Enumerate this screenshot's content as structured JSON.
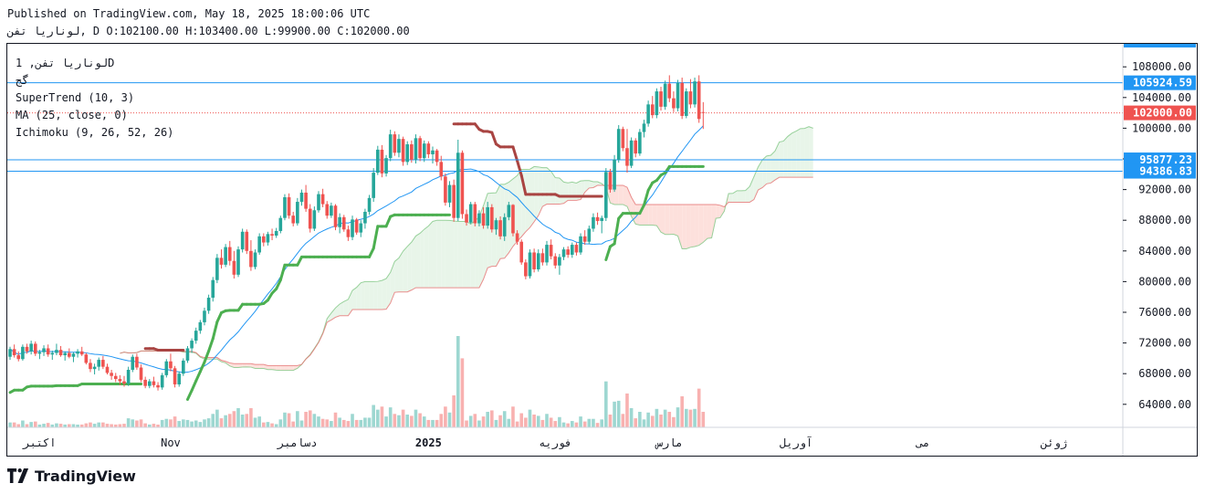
{
  "header": {
    "published": "Published on TradingView.com, May 18, 2025 18:00:06 UTC",
    "ohlc_line": "لوناریا تفن, D O:102100.00 H:103400.00 L:99900.00 C:102000.00"
  },
  "legend": {
    "symbol": "لوناریا تفن, 1D",
    "subtitle": "گج",
    "indicators": [
      "SuperTrend (10, 3)",
      "MA (25, close, 0)",
      "Ichimoku (9, 26, 52, 26)"
    ]
  },
  "brand": {
    "name": "TradingView",
    "logo_icon": "tradingview-logo-icon"
  },
  "colors": {
    "up": "#26a69a",
    "down": "#ef5350",
    "supertrend_up": "#4caf50",
    "supertrend_down": "#a94442",
    "ma": "#2196f3",
    "cloud_bull": "#e8f5e9",
    "cloud_bear": "#fde0dc",
    "price_label_bg": "#ef5350",
    "level_label_bg": "#2196f3"
  },
  "chart_data": {
    "type": "candlestick",
    "y_axis": {
      "ticks": [
        64000,
        68000,
        72000,
        76000,
        80000,
        84000,
        88000,
        92000,
        96000,
        100000,
        104000,
        108000
      ],
      "tick_labels": [
        "64000.00",
        "68000.00",
        "72000.00",
        "76000.00",
        "80000.00",
        "84000.00",
        "88000.00",
        "92000.00",
        "96000.00",
        "100000.00",
        "104000.00",
        "108000.00"
      ],
      "range": [
        61000,
        111000
      ]
    },
    "x_axis": {
      "labels": [
        "اکتبر",
        "Nov",
        "دسامبر",
        "2025",
        "فوریه",
        "مارس",
        "آوریل",
        "می",
        "ژوئن"
      ],
      "label_index": [
        7,
        38,
        68,
        99,
        129,
        156,
        186,
        216,
        247
      ]
    },
    "last_price": {
      "value": 102000,
      "label": "102000.00"
    },
    "horizontal_levels": [
      {
        "value": 105924.59,
        "label": "105924.59"
      },
      {
        "value": 95877.23,
        "label": "95877.23"
      },
      {
        "value": 94386.83,
        "label": "94386.83"
      }
    ],
    "ohlc": [
      [
        70200,
        71500,
        69800,
        71200
      ],
      [
        71200,
        71800,
        70100,
        70400
      ],
      [
        70400,
        70900,
        69600,
        69900
      ],
      [
        69900,
        71800,
        69700,
        71500
      ],
      [
        71500,
        71900,
        70600,
        70900
      ],
      [
        70900,
        72300,
        70500,
        71900
      ],
      [
        71900,
        72200,
        70300,
        70600
      ],
      [
        70600,
        71100,
        69900,
        70800
      ],
      [
        70800,
        71700,
        70300,
        71300
      ],
      [
        71300,
        71800,
        70200,
        70500
      ],
      [
        70500,
        71000,
        69800,
        70700
      ],
      [
        70700,
        71900,
        70400,
        71100
      ],
      [
        71100,
        71600,
        70200,
        70400
      ],
      [
        70400,
        70900,
        69700,
        70700
      ],
      [
        70700,
        71300,
        70000,
        70200
      ],
      [
        70200,
        70800,
        69500,
        70600
      ],
      [
        70600,
        71200,
        70100,
        70900
      ],
      [
        70900,
        71500,
        70300,
        70500
      ],
      [
        70500,
        70700,
        69200,
        69400
      ],
      [
        69400,
        69900,
        68200,
        68600
      ],
      [
        68600,
        69300,
        67900,
        68900
      ],
      [
        68900,
        70100,
        68400,
        69800
      ],
      [
        69800,
        70300,
        68600,
        68900
      ],
      [
        68900,
        69300,
        67900,
        68100
      ],
      [
        68100,
        68500,
        67200,
        67700
      ],
      [
        67700,
        68100,
        66900,
        67300
      ],
      [
        67300,
        67800,
        66500,
        67000
      ],
      [
        67000,
        67700,
        66300,
        66700
      ],
      [
        66700,
        68900,
        66400,
        68500
      ],
      [
        68500,
        70500,
        68200,
        70200
      ],
      [
        70200,
        70600,
        68500,
        68800
      ],
      [
        68800,
        69200,
        66900,
        67200
      ],
      [
        67200,
        67600,
        66100,
        66400
      ],
      [
        66400,
        67300,
        66100,
        67000
      ],
      [
        67000,
        67600,
        66200,
        66500
      ],
      [
        66500,
        66900,
        65800,
        66200
      ],
      [
        66200,
        68100,
        65900,
        67800
      ],
      [
        67800,
        69900,
        67500,
        69600
      ],
      [
        69600,
        70600,
        68300,
        68700
      ],
      [
        68700,
        69000,
        66200,
        66600
      ],
      [
        66600,
        68300,
        66300,
        68000
      ],
      [
        68000,
        70000,
        67700,
        69700
      ],
      [
        69700,
        71600,
        69400,
        71300
      ],
      [
        71300,
        72600,
        70700,
        72300
      ],
      [
        72300,
        74000,
        71900,
        73600
      ],
      [
        73600,
        75000,
        73200,
        74700
      ],
      [
        74700,
        76600,
        74300,
        76200
      ],
      [
        76200,
        78300,
        75800,
        77900
      ],
      [
        77900,
        80600,
        77400,
        80200
      ],
      [
        80200,
        83600,
        79800,
        83100
      ],
      [
        83100,
        84200,
        81700,
        82200
      ],
      [
        82200,
        84900,
        81900,
        84500
      ],
      [
        84500,
        85300,
        82100,
        82700
      ],
      [
        82700,
        84000,
        80400,
        80900
      ],
      [
        80900,
        84600,
        80600,
        84200
      ],
      [
        84200,
        86900,
        83800,
        86500
      ],
      [
        86500,
        86800,
        83600,
        84000
      ],
      [
        84000,
        85400,
        81400,
        81900
      ],
      [
        81900,
        84200,
        81600,
        83800
      ],
      [
        83800,
        86300,
        83500,
        85900
      ],
      [
        85900,
        86300,
        84600,
        85100
      ],
      [
        85100,
        86500,
        84700,
        86200
      ],
      [
        86200,
        86900,
        85400,
        86000
      ],
      [
        86000,
        87000,
        85700,
        86600
      ],
      [
        86600,
        88600,
        86300,
        88300
      ],
      [
        88300,
        91400,
        88000,
        91000
      ],
      [
        91000,
        91500,
        88200,
        88600
      ],
      [
        88600,
        89100,
        87200,
        87600
      ],
      [
        87600,
        90900,
        87300,
        90400
      ],
      [
        90400,
        92000,
        89900,
        91600
      ],
      [
        91600,
        92600,
        89100,
        89500
      ],
      [
        89500,
        90100,
        86400,
        86900
      ],
      [
        86900,
        89800,
        86600,
        89300
      ],
      [
        89300,
        91800,
        89000,
        91400
      ],
      [
        91400,
        92100,
        89700,
        90100
      ],
      [
        90100,
        90500,
        88200,
        88600
      ],
      [
        88600,
        90300,
        88300,
        89900
      ],
      [
        89900,
        90100,
        86700,
        87100
      ],
      [
        87100,
        88900,
        86300,
        88400
      ],
      [
        88400,
        88700,
        86500,
        86800
      ],
      [
        86800,
        87300,
        85300,
        85800
      ],
      [
        85800,
        88600,
        85400,
        88100
      ],
      [
        88100,
        88300,
        86100,
        86400
      ],
      [
        86400,
        88000,
        85800,
        87600
      ],
      [
        87600,
        89500,
        86900,
        89100
      ],
      [
        89100,
        91300,
        88700,
        90900
      ],
      [
        90900,
        94800,
        90400,
        94200
      ],
      [
        94200,
        97700,
        93900,
        97200
      ],
      [
        97200,
        97800,
        93600,
        94100
      ],
      [
        94100,
        96500,
        93700,
        96100
      ],
      [
        96100,
        99800,
        95700,
        99200
      ],
      [
        99200,
        99600,
        96400,
        96800
      ],
      [
        96800,
        99200,
        96200,
        98600
      ],
      [
        98600,
        98900,
        95100,
        95600
      ],
      [
        95600,
        98300,
        95200,
        97900
      ],
      [
        97900,
        98400,
        95500,
        95900
      ],
      [
        95900,
        99200,
        95400,
        98700
      ],
      [
        98700,
        99000,
        95700,
        96100
      ],
      [
        96100,
        98400,
        95600,
        98000
      ],
      [
        98000,
        98300,
        96100,
        96600
      ],
      [
        96600,
        97600,
        95400,
        97100
      ],
      [
        97100,
        97300,
        95100,
        95600
      ],
      [
        95600,
        96400,
        93200,
        93700
      ],
      [
        93700,
        94100,
        89900,
        90300
      ],
      [
        90300,
        93100,
        89700,
        92600
      ],
      [
        92600,
        93300,
        87800,
        88300
      ],
      [
        88300,
        98500,
        87900,
        96800
      ],
      [
        96800,
        97100,
        88200,
        88800
      ],
      [
        88800,
        89400,
        87300,
        87700
      ],
      [
        87700,
        90400,
        87500,
        90100
      ],
      [
        90100,
        90400,
        87200,
        87600
      ],
      [
        87600,
        89300,
        87200,
        88900
      ],
      [
        88900,
        89700,
        86900,
        87300
      ],
      [
        87300,
        90400,
        86900,
        89700
      ],
      [
        89700,
        90100,
        86400,
        86800
      ],
      [
        86800,
        88300,
        86100,
        88000
      ],
      [
        88000,
        88500,
        85500,
        85900
      ],
      [
        85900,
        88900,
        85300,
        88400
      ],
      [
        88400,
        90400,
        88000,
        90000
      ],
      [
        90000,
        90100,
        85900,
        86300
      ],
      [
        86300,
        86700,
        84800,
        85200
      ],
      [
        85200,
        85500,
        82200,
        82500
      ],
      [
        82500,
        82900,
        80300,
        80700
      ],
      [
        80700,
        84200,
        80400,
        83800
      ],
      [
        83800,
        84300,
        81200,
        81600
      ],
      [
        81600,
        84200,
        81300,
        83700
      ],
      [
        83700,
        84300,
        82100,
        82500
      ],
      [
        82500,
        85300,
        82100,
        84800
      ],
      [
        84800,
        85500,
        82900,
        83300
      ],
      [
        83300,
        83700,
        81700,
        82100
      ],
      [
        82100,
        83600,
        80900,
        83200
      ],
      [
        83200,
        84500,
        82800,
        84200
      ],
      [
        84200,
        84600,
        83100,
        83500
      ],
      [
        83500,
        85100,
        83100,
        84800
      ],
      [
        84800,
        85100,
        83400,
        83800
      ],
      [
        83800,
        86300,
        83500,
        85900
      ],
      [
        85900,
        86700,
        84800,
        85200
      ],
      [
        85200,
        87300,
        84900,
        86900
      ],
      [
        86900,
        88900,
        86500,
        88400
      ],
      [
        88400,
        89000,
        87400,
        87900
      ],
      [
        87900,
        88600,
        86300,
        88300
      ],
      [
        88300,
        94800,
        87900,
        94300
      ],
      [
        94300,
        94700,
        91600,
        92000
      ],
      [
        92000,
        96500,
        91700,
        95900
      ],
      [
        95900,
        100400,
        95500,
        99900
      ],
      [
        99900,
        100200,
        97000,
        97400
      ],
      [
        97400,
        99900,
        94200,
        95100
      ],
      [
        95100,
        98800,
        94800,
        98400
      ],
      [
        98400,
        98700,
        96200,
        96700
      ],
      [
        96700,
        99900,
        96400,
        99500
      ],
      [
        99500,
        101100,
        98800,
        100600
      ],
      [
        100600,
        103600,
        100200,
        103100
      ],
      [
        103100,
        104200,
        101300,
        101700
      ],
      [
        101700,
        105200,
        101300,
        104800
      ],
      [
        104800,
        105400,
        102300,
        102800
      ],
      [
        102800,
        106200,
        102400,
        105800
      ],
      [
        105800,
        106900,
        103400,
        103900
      ],
      [
        103900,
        104800,
        102100,
        102600
      ],
      [
        102600,
        106300,
        102200,
        105900
      ],
      [
        105900,
        106600,
        101200,
        101600
      ],
      [
        101600,
        105200,
        101300,
        104800
      ],
      [
        104800,
        106400,
        102600,
        103100
      ],
      [
        103100,
        106600,
        102700,
        106100
      ],
      [
        106100,
        106900,
        100700,
        101200
      ],
      [
        102100,
        103400,
        99900,
        102000
      ]
    ]
  }
}
